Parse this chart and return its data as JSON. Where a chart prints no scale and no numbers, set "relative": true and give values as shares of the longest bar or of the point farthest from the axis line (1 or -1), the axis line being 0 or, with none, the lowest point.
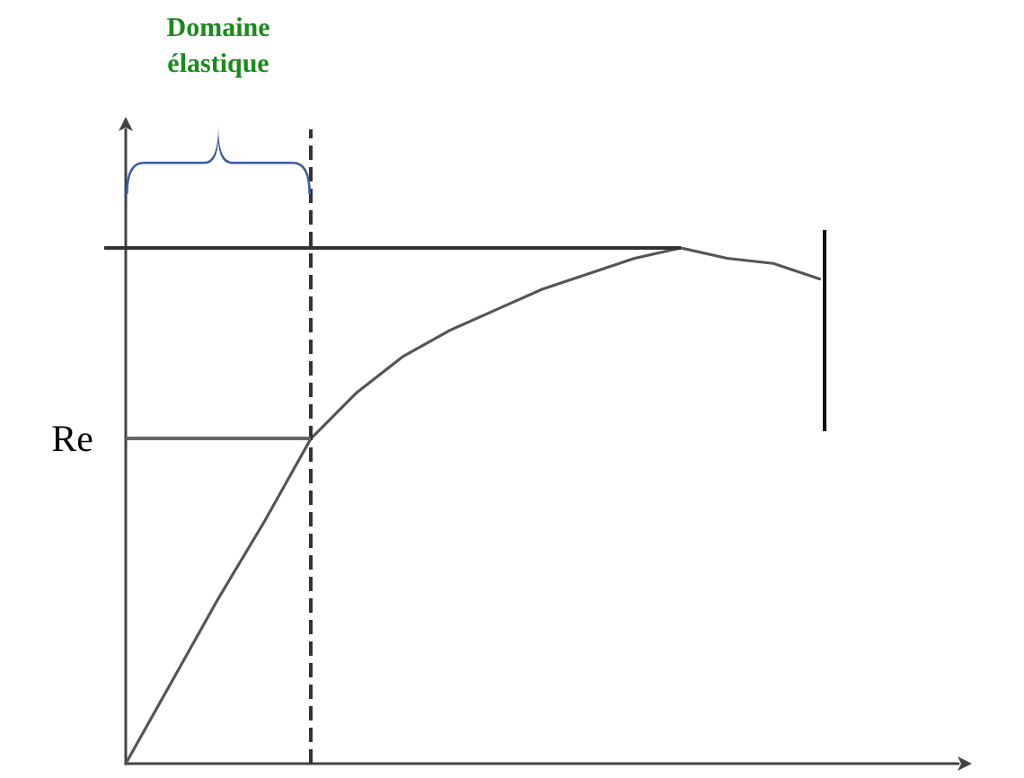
{
  "chart_data": {
    "type": "line",
    "relative": true,
    "annotations": [
      "Domaine élastique"
    ],
    "categories": [
      null,
      null,
      null,
      null,
      null,
      null,
      null,
      null,
      null,
      null,
      null,
      null,
      null,
      null,
      null,
      null,
      null,
      null,
      null
    ],
    "series": [
      {
        "color": "#555555",
        "values": [
          0,
          0.16,
          0.32,
          0.47,
          0.63,
          0.72,
          0.79,
          0.84,
          0.88,
          0.92,
          0.95,
          0.98,
          1.0,
          0.98,
          0.97,
          0.94,
          null,
          null,
          null
        ]
      }
    ],
    "ref_lines": [
      {
        "axis": "y",
        "value": 1,
        "color": "#333333"
      },
      {
        "axis": "y",
        "value": 0.63,
        "label": "Re",
        "color": "#666666"
      }
    ],
    "grid": false,
    "marker": "none",
    "line_style": "solid"
  }
}
